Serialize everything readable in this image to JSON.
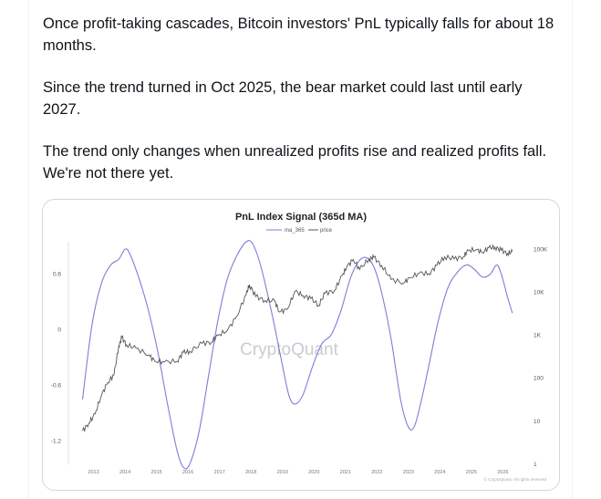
{
  "post": {
    "paragraphs": [
      "Once profit-taking cascades, Bitcoin investors' PnL typically falls for about 18 months.",
      "Since the trend turned in Oct 2025, the bear market could last until early 2027.",
      "The trend only changes when unrealized profits rise and realized profits fall. We're not there yet."
    ]
  },
  "chart_data": {
    "type": "line",
    "title": "PnL Index Signal (365d MA)",
    "legend": [
      "ma_365",
      "price"
    ],
    "legend_placement": "top-center",
    "watermark": "CryptoQuant",
    "credit": "© CryptoQuant. All rights reserved",
    "colors": {
      "ma_365": "#7b7fd4",
      "price": "#555555"
    },
    "x_ticks": [
      "2013",
      "2014",
      "2015",
      "2016",
      "2017",
      "2018",
      "2019",
      "2020",
      "2021",
      "2022",
      "2023",
      "2024",
      "2025",
      "2026"
    ],
    "y_left": {
      "ticks": [
        "0.6",
        "0",
        "-0.6",
        "-1.2"
      ],
      "values": [
        0.6,
        0,
        -0.6,
        -1.2
      ],
      "range": [
        -1.45,
        0.95
      ]
    },
    "y_right": {
      "ticks": [
        "100K",
        "10K",
        "1K",
        "100",
        "10",
        "1"
      ],
      "values": [
        100000,
        10000,
        1000,
        100,
        10,
        1
      ],
      "scale": "log",
      "range": [
        1,
        150000
      ]
    },
    "series": [
      {
        "name": "ma_365",
        "axis": "left",
        "points": [
          [
            2012.7,
            -0.75
          ],
          [
            2013.0,
            0.05
          ],
          [
            2013.3,
            0.5
          ],
          [
            2013.6,
            0.7
          ],
          [
            2013.85,
            0.76
          ],
          [
            2014.05,
            0.87
          ],
          [
            2014.2,
            0.82
          ],
          [
            2014.5,
            0.55
          ],
          [
            2014.8,
            0.2
          ],
          [
            2015.1,
            -0.25
          ],
          [
            2015.4,
            -0.8
          ],
          [
            2015.7,
            -1.3
          ],
          [
            2015.9,
            -1.48
          ],
          [
            2016.1,
            -1.45
          ],
          [
            2016.4,
            -1.1
          ],
          [
            2016.7,
            -0.5
          ],
          [
            2017.0,
            0.1
          ],
          [
            2017.3,
            0.55
          ],
          [
            2017.6,
            0.8
          ],
          [
            2017.9,
            0.95
          ],
          [
            2018.1,
            0.93
          ],
          [
            2018.35,
            0.7
          ],
          [
            2018.7,
            0.2
          ],
          [
            2019.0,
            -0.3
          ],
          [
            2019.25,
            -0.7
          ],
          [
            2019.45,
            -0.8
          ],
          [
            2019.7,
            -0.7
          ],
          [
            2020.0,
            -0.4
          ],
          [
            2020.3,
            -0.15
          ],
          [
            2020.6,
            -0.05
          ],
          [
            2020.9,
            0.2
          ],
          [
            2021.2,
            0.55
          ],
          [
            2021.45,
            0.73
          ],
          [
            2021.7,
            0.78
          ],
          [
            2021.95,
            0.68
          ],
          [
            2022.2,
            0.4
          ],
          [
            2022.5,
            -0.1
          ],
          [
            2022.8,
            -0.75
          ],
          [
            2023.05,
            -1.05
          ],
          [
            2023.25,
            -1.03
          ],
          [
            2023.5,
            -0.7
          ],
          [
            2023.75,
            -0.3
          ],
          [
            2024.0,
            0.1
          ],
          [
            2024.3,
            0.45
          ],
          [
            2024.6,
            0.62
          ],
          [
            2024.9,
            0.7
          ],
          [
            2025.15,
            0.65
          ],
          [
            2025.4,
            0.57
          ],
          [
            2025.65,
            0.6
          ],
          [
            2025.85,
            0.7
          ],
          [
            2026.0,
            0.6
          ],
          [
            2026.2,
            0.35
          ],
          [
            2026.35,
            0.18
          ]
        ]
      },
      {
        "name": "price",
        "axis": "right",
        "points": [
          [
            2012.7,
            6
          ],
          [
            2012.9,
            9
          ],
          [
            2013.1,
            15
          ],
          [
            2013.3,
            40
          ],
          [
            2013.5,
            80
          ],
          [
            2013.7,
            120
          ],
          [
            2013.85,
            550
          ],
          [
            2013.95,
            900
          ],
          [
            2014.1,
            600
          ],
          [
            2014.4,
            500
          ],
          [
            2014.8,
            350
          ],
          [
            2015.0,
            250
          ],
          [
            2015.3,
            240
          ],
          [
            2015.7,
            250
          ],
          [
            2015.9,
            400
          ],
          [
            2016.1,
            420
          ],
          [
            2016.5,
            650
          ],
          [
            2016.8,
            700
          ],
          [
            2017.0,
            1000
          ],
          [
            2017.3,
            1300
          ],
          [
            2017.6,
            2800
          ],
          [
            2017.9,
            9000
          ],
          [
            2018.0,
            15000
          ],
          [
            2018.2,
            8000
          ],
          [
            2018.5,
            6500
          ],
          [
            2018.8,
            6300
          ],
          [
            2018.95,
            3500
          ],
          [
            2019.2,
            4000
          ],
          [
            2019.45,
            10500
          ],
          [
            2019.7,
            8500
          ],
          [
            2019.95,
            7200
          ],
          [
            2020.2,
            5000
          ],
          [
            2020.4,
            9500
          ],
          [
            2020.7,
            11000
          ],
          [
            2020.95,
            25000
          ],
          [
            2021.1,
            40000
          ],
          [
            2021.3,
            58000
          ],
          [
            2021.5,
            34000
          ],
          [
            2021.8,
            60000
          ],
          [
            2021.95,
            65000
          ],
          [
            2022.2,
            42000
          ],
          [
            2022.5,
            20000
          ],
          [
            2022.9,
            16500
          ],
          [
            2023.1,
            22000
          ],
          [
            2023.4,
            28000
          ],
          [
            2023.7,
            27000
          ],
          [
            2023.95,
            42000
          ],
          [
            2024.2,
            67000
          ],
          [
            2024.5,
            60000
          ],
          [
            2024.8,
            68000
          ],
          [
            2024.95,
            95000
          ],
          [
            2025.2,
            98000
          ],
          [
            2025.4,
            85000
          ],
          [
            2025.6,
            108000
          ],
          [
            2025.8,
            112000
          ],
          [
            2026.0,
            95000
          ],
          [
            2026.2,
            80000
          ],
          [
            2026.35,
            88000
          ]
        ]
      }
    ]
  }
}
